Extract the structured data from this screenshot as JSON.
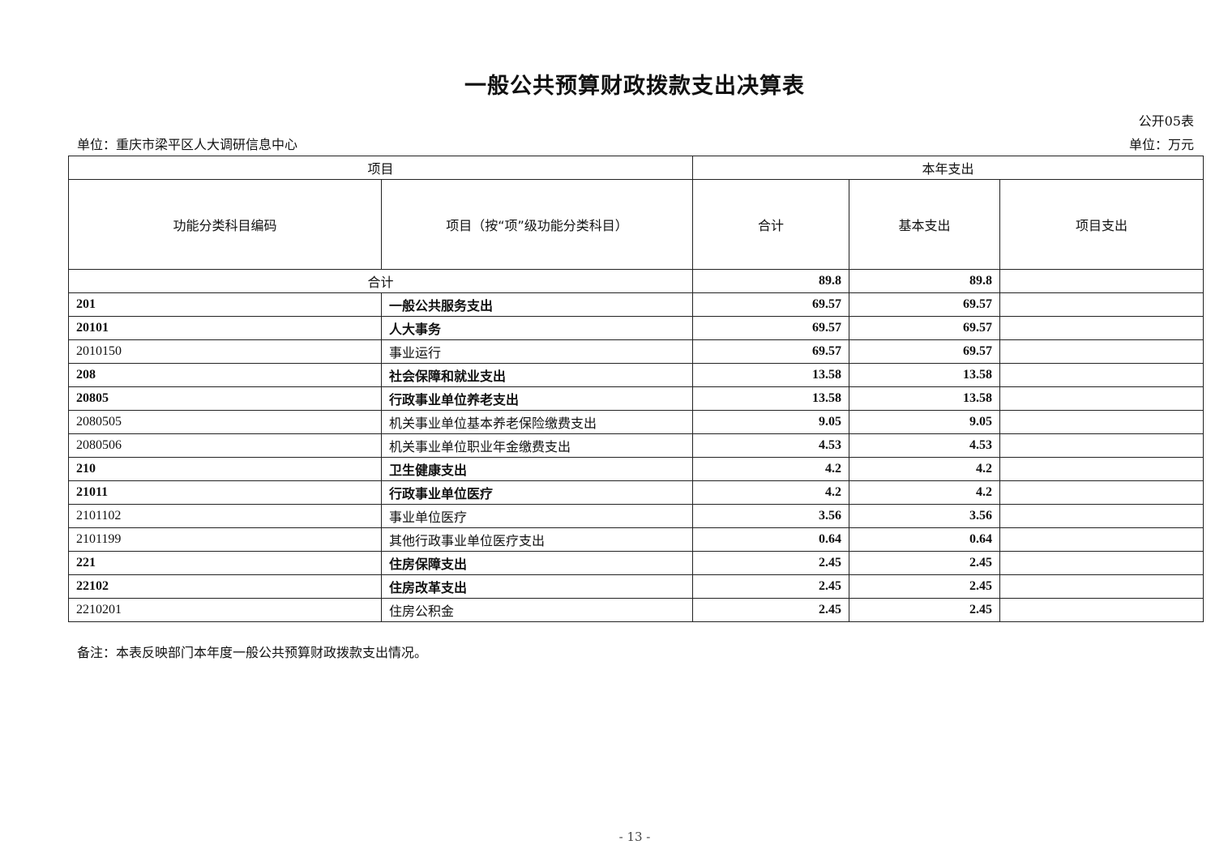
{
  "title": "一般公共预算财政拨款支出决算表",
  "table_no": "公开05表",
  "unit_org": "单位：重庆市梁平区人大调研信息中心",
  "unit_money": "单位：万元",
  "header": {
    "project": "项目",
    "current_year": "本年支出",
    "code": "功能分类科目编码",
    "item": "项目（按“项”级功能分类科目）",
    "total": "合计",
    "basic": "基本支出",
    "project_exp": "项目支出"
  },
  "total_row": {
    "label": "合计",
    "total": "89.8",
    "basic": "89.8",
    "project": ""
  },
  "rows": [
    {
      "code": "201",
      "name": "一般公共服务支出",
      "total": "69.57",
      "basic": "69.57",
      "project": "",
      "bold": true
    },
    {
      "code": "20101",
      "name": "人大事务",
      "total": "69.57",
      "basic": "69.57",
      "project": "",
      "bold": true
    },
    {
      "code": "2010150",
      "name": "事业运行",
      "total": "69.57",
      "basic": "69.57",
      "project": "",
      "bold": false
    },
    {
      "code": "208",
      "name": "社会保障和就业支出",
      "total": "13.58",
      "basic": "13.58",
      "project": "",
      "bold": true
    },
    {
      "code": "20805",
      "name": "行政事业单位养老支出",
      "total": "13.58",
      "basic": "13.58",
      "project": "",
      "bold": true
    },
    {
      "code": "2080505",
      "name": "机关事业单位基本养老保险缴费支出",
      "total": "9.05",
      "basic": "9.05",
      "project": "",
      "bold": false
    },
    {
      "code": "2080506",
      "name": "机关事业单位职业年金缴费支出",
      "total": "4.53",
      "basic": "4.53",
      "project": "",
      "bold": false
    },
    {
      "code": "210",
      "name": "卫生健康支出",
      "total": "4.2",
      "basic": "4.2",
      "project": "",
      "bold": true
    },
    {
      "code": "21011",
      "name": "行政事业单位医疗",
      "total": "4.2",
      "basic": "4.2",
      "project": "",
      "bold": true
    },
    {
      "code": "2101102",
      "name": "事业单位医疗",
      "total": "3.56",
      "basic": "3.56",
      "project": "",
      "bold": false
    },
    {
      "code": "2101199",
      "name": "其他行政事业单位医疗支出",
      "total": "0.64",
      "basic": "0.64",
      "project": "",
      "bold": false
    },
    {
      "code": "221",
      "name": "住房保障支出",
      "total": "2.45",
      "basic": "2.45",
      "project": "",
      "bold": true
    },
    {
      "code": "22102",
      "name": "住房改革支出",
      "total": "2.45",
      "basic": "2.45",
      "project": "",
      "bold": true
    },
    {
      "code": "2210201",
      "name": "住房公积金",
      "total": "2.45",
      "basic": "2.45",
      "project": "",
      "bold": false
    }
  ],
  "note": "备注：本表反映部门本年度一般公共预算财政拨款支出情况。",
  "page_number": "- 13 -"
}
